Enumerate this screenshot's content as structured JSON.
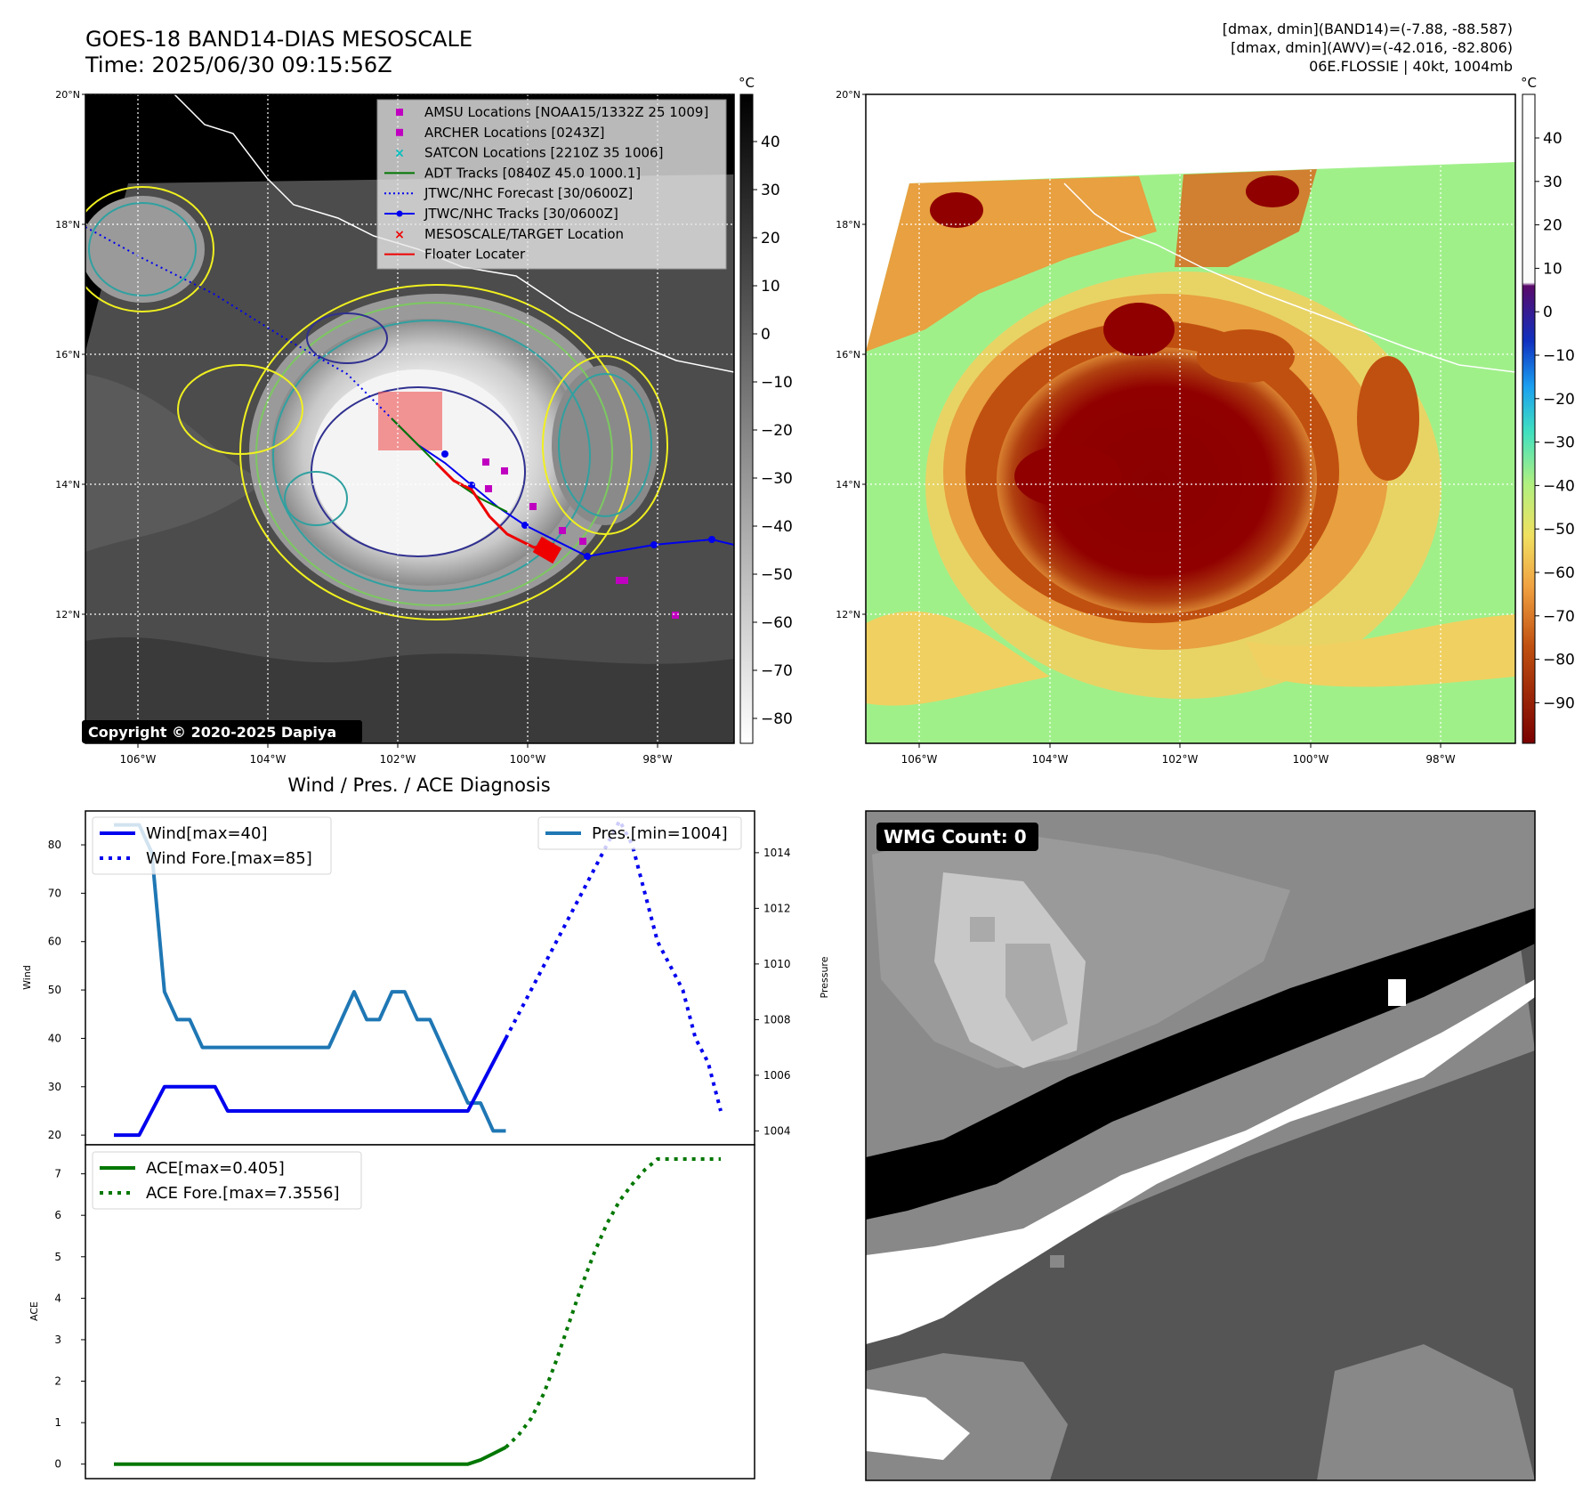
{
  "header": {
    "title_line1": "GOES-18 BAND14-DIAS MESOSCALE",
    "title_line2": "Time: 2025/06/30 09:15:56Z",
    "info_line1": "[dmax, dmin](BAND14)=(-7.88, -88.587)",
    "info_line2": "[dmax, dmin](AWV)=(-42.016, -82.806)",
    "info_line3": "06E.FLOSSIE | 40kt, 1004mb"
  },
  "colors": {
    "wind": "#0000ee",
    "pressure": "#1f77b4",
    "ace": "#007700",
    "amsu": "#c000c0",
    "satcon": "#00bfbf",
    "floater": "#ee0000"
  },
  "maps": {
    "lat_labels": [
      "20°N",
      "18°N",
      "16°N",
      "14°N",
      "12°N"
    ],
    "lon_labels": [
      "106°W",
      "104°W",
      "102°W",
      "100°W",
      "98°W"
    ],
    "copyright": "Copyright © 2020-2025 Dapiya",
    "legend": [
      {
        "marker": "square",
        "color": "#c000c0",
        "label": "AMSU Locations [NOAA15/1332Z 25 1009]"
      },
      {
        "marker": "square",
        "color": "#c000c0",
        "label": "ARCHER Locations [0243Z]"
      },
      {
        "marker": "x",
        "color": "#00bfbf",
        "label": "SATCON Locations [2210Z 35 1006]"
      },
      {
        "marker": "line",
        "color": "#007700",
        "label": "ADT Tracks [0840Z 45.0 1000.1]"
      },
      {
        "marker": "dotted",
        "color": "#0000ee",
        "label": "JTWC/NHC Forecast [30/0600Z]"
      },
      {
        "marker": "dotline",
        "color": "#0000ee",
        "label": "JTWC/NHC Tracks [30/0600Z]"
      },
      {
        "marker": "x",
        "color": "#ee0000",
        "label": "MESOSCALE/TARGET Location"
      },
      {
        "marker": "line",
        "color": "#ee0000",
        "label": "Floater Locater"
      }
    ],
    "left_cbar": {
      "unit": "°C",
      "ticks": [
        "40",
        "30",
        "20",
        "10",
        "0",
        "−10",
        "−20",
        "−30",
        "−40",
        "−50",
        "−60",
        "−70",
        "−80"
      ]
    },
    "right_cbar": {
      "unit": "°C",
      "ticks": [
        "40",
        "30",
        "20",
        "10",
        "0",
        "−10",
        "−20",
        "−30",
        "−40",
        "−50",
        "−60",
        "−70",
        "−80",
        "−90"
      ]
    }
  },
  "wmg": {
    "label": "WMG Count: 0"
  },
  "chart_data": [
    {
      "type": "line",
      "title": "Wind / Pres. / ACE Diagnosis",
      "ylabel": "Wind",
      "ylim": [
        18,
        87
      ],
      "yticks": [
        20,
        30,
        40,
        50,
        60,
        70,
        80
      ],
      "series": [
        {
          "name": "Wind[max=40]",
          "style": "solid",
          "color": "#0000ee",
          "x": [
            0,
            1,
            2,
            3,
            4,
            5,
            6,
            7,
            8,
            9,
            10,
            11,
            12,
            13,
            14,
            15,
            16,
            17,
            18,
            19,
            20,
            21,
            22,
            23,
            24,
            25,
            26,
            27,
            28,
            29,
            30,
            31
          ],
          "y": [
            20,
            20,
            20,
            25,
            30,
            30,
            30,
            30,
            30,
            25,
            25,
            25,
            25,
            25,
            25,
            25,
            25,
            25,
            25,
            25,
            25,
            25,
            25,
            25,
            25,
            25,
            25,
            25,
            25,
            30,
            35,
            40
          ]
        },
        {
          "name": "Wind Fore.[max=85]",
          "style": "dotted",
          "color": "#0000ee",
          "x": [
            31,
            32,
            33,
            34,
            35,
            36,
            37,
            38,
            39,
            40,
            41,
            42,
            43,
            44,
            45,
            46,
            47,
            48
          ],
          "y": [
            40,
            45,
            50,
            55,
            60,
            65,
            70,
            75,
            80,
            85,
            80,
            70,
            60,
            55,
            50,
            40,
            35,
            25
          ]
        }
      ],
      "secondary_axis": {
        "ylabel": "Pressure",
        "ylim": [
          1003.5,
          1015.5
        ],
        "yticks": [
          1004,
          1006,
          1008,
          1010,
          1012,
          1014
        ],
        "series": [
          {
            "name": "Pres.[min=1004]",
            "style": "solid",
            "color": "#1f77b4",
            "x": [
              0,
              1,
              2,
              3,
              4,
              5,
              6,
              7,
              8,
              9,
              10,
              11,
              12,
              13,
              14,
              15,
              16,
              17,
              18,
              19,
              20,
              21,
              22,
              23,
              24,
              25,
              26,
              27,
              28,
              29,
              30,
              31
            ],
            "y": [
              1015,
              1015,
              1015,
              1014,
              1009,
              1008,
              1008,
              1007,
              1007,
              1007,
              1007,
              1007,
              1007,
              1007,
              1007,
              1007,
              1007,
              1007,
              1008,
              1009,
              1008,
              1008,
              1009,
              1009,
              1008,
              1008,
              1007,
              1006,
              1005,
              1005,
              1004,
              1004
            ]
          }
        ]
      },
      "legend": [
        "Wind[max=40]",
        "Wind Fore.[max=85]",
        "Pres.[min=1004]"
      ]
    },
    {
      "type": "line",
      "ylabel": "ACE",
      "ylim": [
        -0.35,
        7.7
      ],
      "yticks": [
        0,
        1,
        2,
        3,
        4,
        5,
        6,
        7
      ],
      "series": [
        {
          "name": "ACE[max=0.405]",
          "style": "solid",
          "color": "#007700",
          "x": [
            0,
            4,
            8,
            12,
            16,
            20,
            24,
            28,
            29,
            30,
            31
          ],
          "y": [
            0,
            0,
            0,
            0,
            0,
            0,
            0,
            0,
            0.1,
            0.25,
            0.405
          ]
        },
        {
          "name": "ACE Fore.[max=7.3556]",
          "style": "dotted",
          "color": "#007700",
          "x": [
            31,
            32,
            33,
            34,
            35,
            36,
            37,
            38,
            39,
            40,
            41,
            42,
            43,
            44,
            45,
            46,
            47,
            48
          ],
          "y": [
            0.405,
            0.7,
            1.1,
            1.7,
            2.5,
            3.4,
            4.3,
            5.1,
            5.8,
            6.35,
            6.75,
            7.1,
            7.3556,
            7.3556,
            7.3556,
            7.3556,
            7.3556,
            7.3556
          ]
        }
      ],
      "legend": [
        "ACE[max=0.405]",
        "ACE Fore.[max=7.3556]"
      ]
    }
  ]
}
